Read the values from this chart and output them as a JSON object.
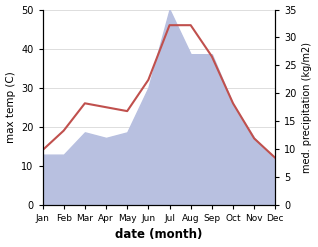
{
  "months": [
    "Jan",
    "Feb",
    "Mar",
    "Apr",
    "May",
    "Jun",
    "Jul",
    "Aug",
    "Sep",
    "Oct",
    "Nov",
    "Dec"
  ],
  "month_indices": [
    1,
    2,
    3,
    4,
    5,
    6,
    7,
    8,
    9,
    10,
    11,
    12
  ],
  "max_temp": [
    14,
    19,
    26,
    25,
    24,
    32,
    46,
    46,
    38,
    26,
    17,
    12
  ],
  "precipitation_right": [
    9,
    9,
    13,
    12,
    13,
    21,
    35,
    27,
    27,
    18,
    12,
    8
  ],
  "temp_color": "#c0504d",
  "precip_fill_color": "#b8c0e0",
  "left_ylim": [
    0,
    50
  ],
  "right_ylim": [
    0,
    35
  ],
  "left_yticks": [
    0,
    10,
    20,
    30,
    40,
    50
  ],
  "right_yticks": [
    0,
    5,
    10,
    15,
    20,
    25,
    30,
    35
  ],
  "xlabel": "date (month)",
  "ylabel_left": "max temp (C)",
  "ylabel_right": "med. precipitation (kg/m2)",
  "bg_color": "#ffffff",
  "grid_color": "#d0d0d0",
  "temp_linewidth": 1.5
}
